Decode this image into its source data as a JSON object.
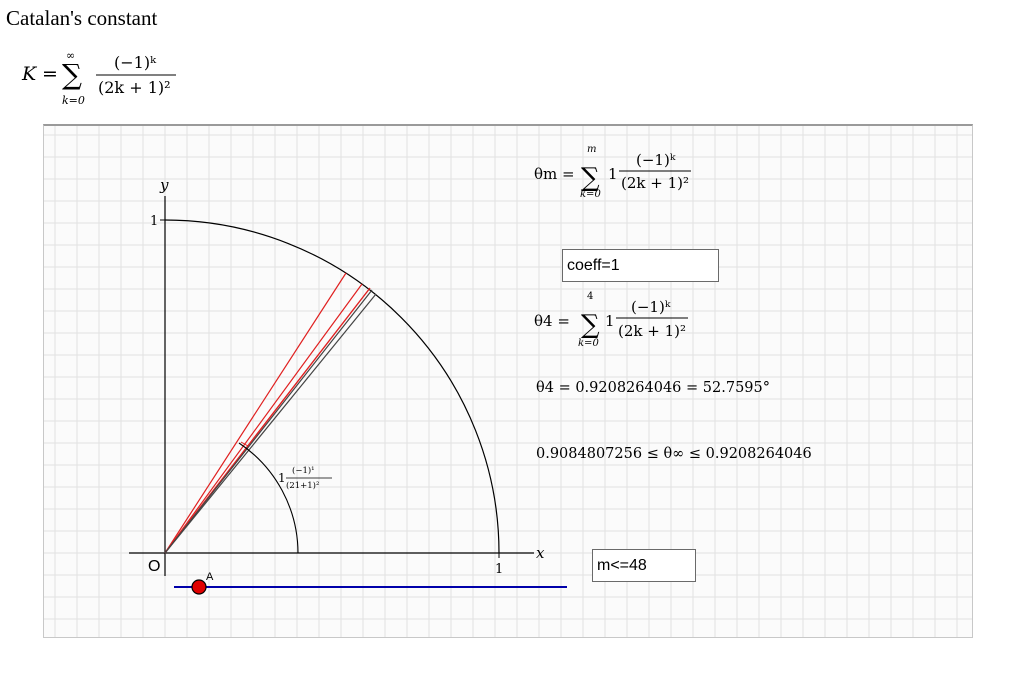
{
  "page": {
    "title": "Catalan's constant"
  },
  "main_formula": {
    "lhs": "K",
    "eq": "=",
    "sum_top": "∞",
    "sum_bottom": "k=0",
    "numerator": "(−1)ᵏ",
    "denominator": "(2k + 1)²"
  },
  "applet": {
    "axes": {
      "x_label": "x",
      "y_label": "y",
      "origin_label": "O",
      "x_tick": "1",
      "y_tick": "1"
    },
    "point_label": "A",
    "angle_label": {
      "coeff": "1",
      "numerator": "(−1)¹",
      "denominator": "(21+1)²"
    },
    "theta_m_formula": {
      "lhs": "θm =",
      "sum_top": "m",
      "sum_bottom": "k=0",
      "coeff": "1",
      "numerator": "(−1)ᵏ",
      "denominator": "(2k + 1)²"
    },
    "coeff_input": {
      "value": "coeff=1"
    },
    "theta4_formula": {
      "lhs": "θ4 =",
      "sum_top": "4",
      "sum_bottom": "k=0",
      "coeff": "1",
      "numerator": "(−1)ᵏ",
      "denominator": "(2k + 1)²"
    },
    "theta4_value": "θ4 = 0.9208264046 = 52.7595°",
    "bounds": "0.9084807256 ≤ θ∞ ≤ 0.9208264046",
    "m_input": {
      "value": "m<=48"
    },
    "slider_value": 0.0
  },
  "colors": {
    "grid": "#e2e2e2",
    "axis": "#000000",
    "arc": "#000000",
    "red_line": "#e02020",
    "dark_line": "#555555",
    "slider": "#0000aa",
    "point": "#e00000"
  }
}
